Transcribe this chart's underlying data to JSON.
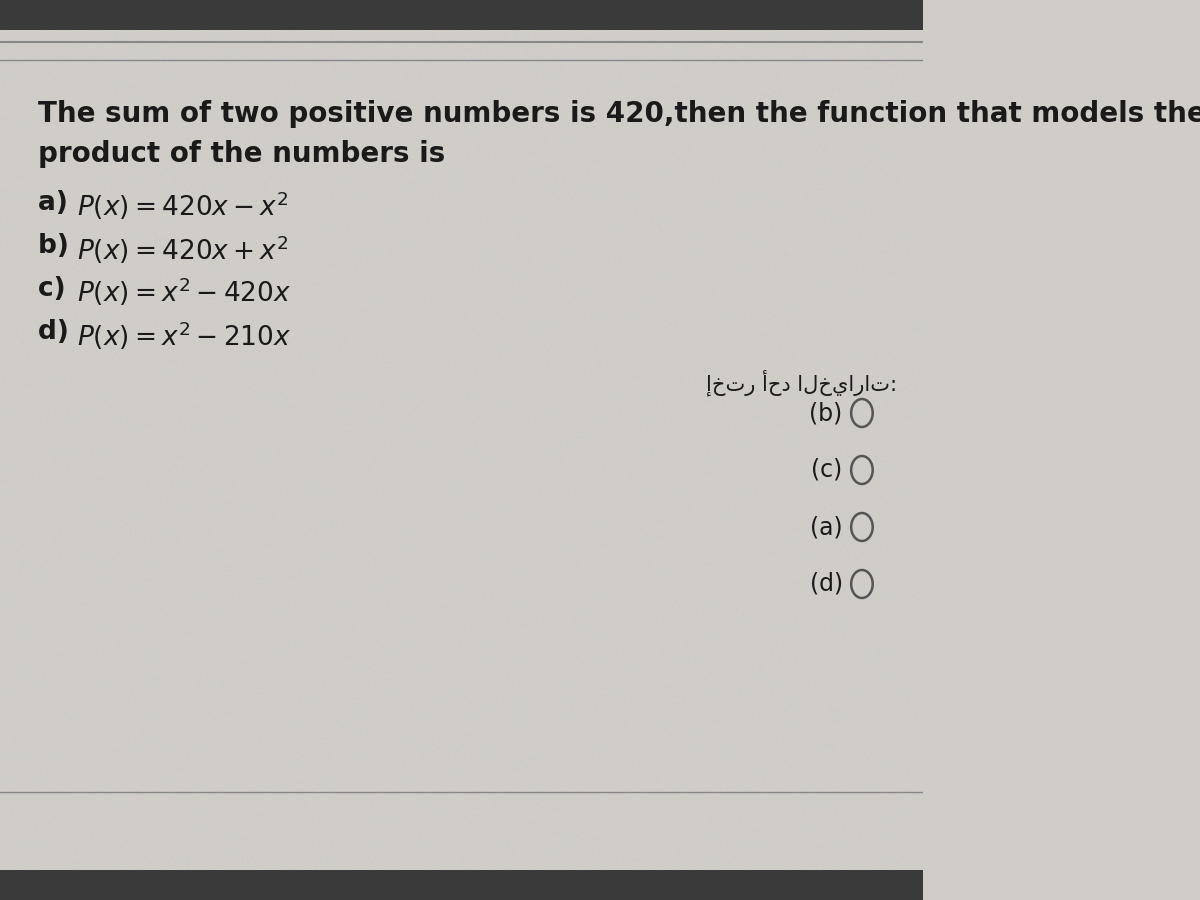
{
  "bg_color": "#d0cdc8",
  "top_bar_color": "#b8b5b0",
  "bottom_bar_color": "#b8b5b0",
  "title_line1": "The sum of two positive numbers is 420,then the function that models the",
  "title_line2": "product of the numbers is",
  "options": [
    {
      "label": "a) ",
      "formula": "$P(x) = 420x - x^2$"
    },
    {
      "label": "b) ",
      "formula": "$P(x) = 420x + x^2$"
    },
    {
      "label": "c) ",
      "formula": "$P(x) = x^2 - 420x$"
    },
    {
      "label": "d) ",
      "formula": "$P(x) = x^2 - 210x$"
    }
  ],
  "arabic_label": "إختر أحد الخيارات:",
  "radio_options": [
    "(b)",
    "(c)",
    "(a)",
    "(d)"
  ],
  "title_fontsize": 20,
  "option_fontsize": 19,
  "radio_fontsize": 17,
  "arabic_fontsize": 15,
  "text_color": "#1a1a1a",
  "separator_color": "#888888",
  "radio_circle_color": "#555555"
}
